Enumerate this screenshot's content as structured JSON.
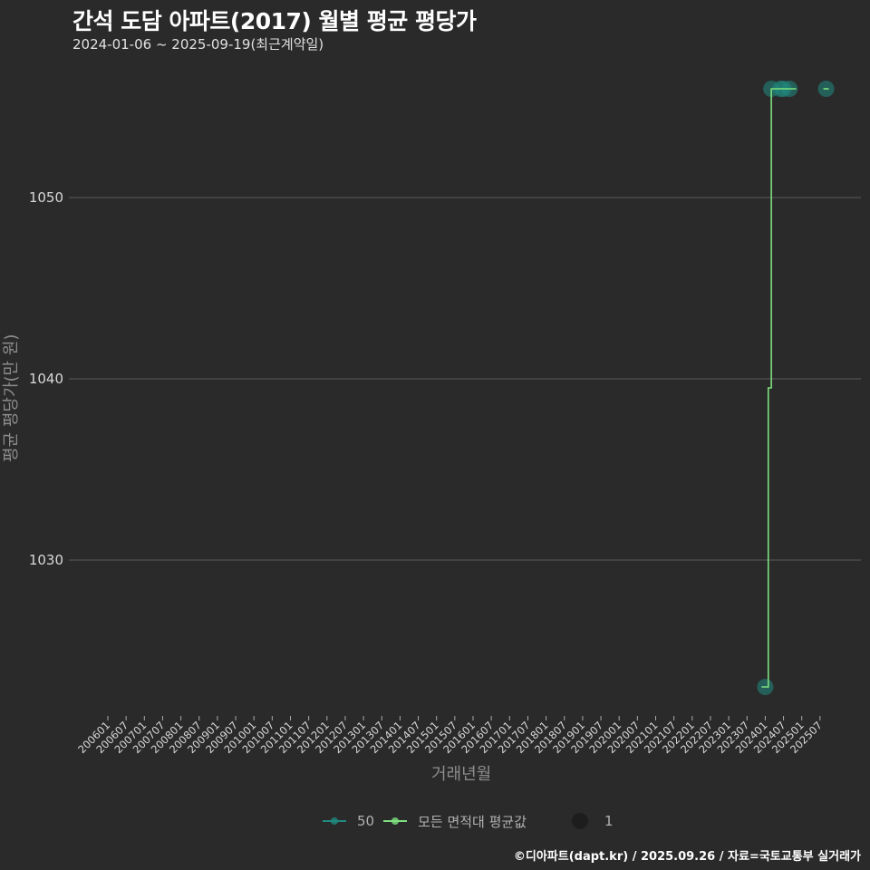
{
  "header": {
    "title": "간석 도담 아파트(2017) 월별 평균 평당가",
    "subtitle": "2024-01-06 ~ 2025-09-19(최근계약일)"
  },
  "axes": {
    "ylabel": "평균 평당가(만 원)",
    "xlabel": "거래년월"
  },
  "legend": {
    "series_50_label": "50",
    "series_all_label": "모든 면적대 평균값",
    "size_label": "1"
  },
  "credit": "©디아파트(dapt.kr) / 2025.09.26 / 자료=국토교통부 실거래가",
  "colors": {
    "background": "#2a2a2b",
    "series_50": "#1f8a80",
    "series_all": "#7ee07e",
    "grid": "#5a5a5a"
  },
  "chart_data": {
    "type": "line",
    "title": "간석 도담 아파트(2017) 월별 평균 평당가",
    "subtitle": "2024-01-06 ~ 2025-09-19(최근계약일)",
    "xlabel": "거래년월",
    "ylabel": "평균 평당가(만 원)",
    "ylim": [
      1021,
      1058
    ],
    "yticks": [
      1030,
      1040,
      1050
    ],
    "grid": true,
    "legend_position": "bottom",
    "xticks": [
      "200601",
      "200607",
      "200701",
      "200707",
      "200801",
      "200807",
      "200901",
      "200907",
      "201001",
      "201007",
      "201101",
      "201107",
      "201201",
      "201207",
      "201301",
      "201307",
      "201401",
      "201407",
      "201501",
      "201507",
      "201601",
      "201607",
      "201701",
      "201707",
      "201801",
      "201807",
      "201901",
      "201907",
      "202001",
      "202007",
      "202101",
      "202107",
      "202201",
      "202207",
      "202301",
      "202307",
      "202401",
      "202407",
      "202501",
      "202507"
    ],
    "series": [
      {
        "name": "50",
        "style": "points",
        "x": [
          "202401",
          "202403",
          "202406",
          "202407",
          "202409",
          "202509"
        ],
        "values": [
          1023,
          1056,
          1056,
          1056,
          1056,
          1056
        ]
      },
      {
        "name": "모든 면적대 평균값",
        "style": "step",
        "x": [
          "202401",
          "202402",
          "202403",
          "202406",
          "202407",
          "202410"
        ],
        "values": [
          1023,
          1039.5,
          1056,
          1056,
          1056,
          1056
        ]
      }
    ]
  }
}
